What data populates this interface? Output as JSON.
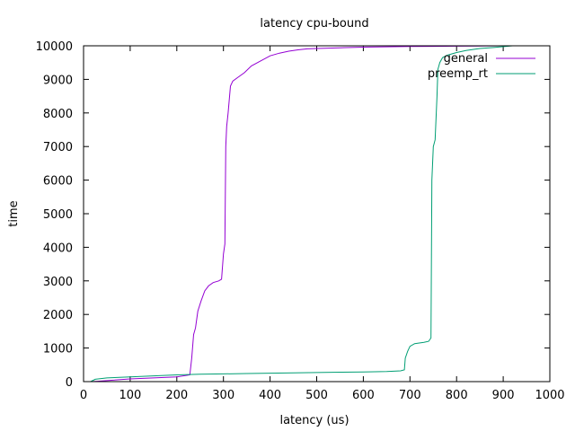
{
  "chart_data": {
    "type": "line",
    "title": "latency cpu-bound",
    "xlabel": "latency (us)",
    "ylabel": "time",
    "xlim": [
      0,
      1000
    ],
    "ylim": [
      0,
      10000
    ],
    "xticks": [
      "0",
      "100",
      "200",
      "300",
      "400",
      "500",
      "600",
      "700",
      "800",
      "900",
      "1000"
    ],
    "yticks": [
      "0",
      "1000",
      "2000",
      "3000",
      "4000",
      "5000",
      "6000",
      "7000",
      "8000",
      "9000",
      "10000"
    ],
    "grid": false,
    "legend_position": "top-right",
    "series": [
      {
        "name": "general",
        "color": "#9400d3",
        "x": [
          15,
          30,
          60,
          100,
          150,
          200,
          228,
          232,
          236,
          240,
          245,
          252,
          260,
          268,
          278,
          290,
          296,
          300,
          303,
          305,
          307,
          310,
          315,
          320,
          330,
          345,
          360,
          380,
          400,
          420,
          440,
          460,
          480,
          500,
          550,
          600,
          650,
          700,
          750,
          800,
          850,
          900
        ],
        "y": [
          0,
          10,
          40,
          80,
          110,
          140,
          200,
          700,
          1400,
          1600,
          2100,
          2400,
          2700,
          2850,
          2950,
          3000,
          3050,
          3800,
          4100,
          7000,
          7600,
          8000,
          8800,
          8950,
          9050,
          9200,
          9400,
          9550,
          9700,
          9780,
          9840,
          9880,
          9910,
          9920,
          9940,
          9960,
          9970,
          9980,
          9985,
          9990,
          9995,
          10000
        ]
      },
      {
        "name": "preemp_rt",
        "color": "#009e73",
        "x": [
          15,
          25,
          50,
          100,
          150,
          200,
          250,
          300,
          350,
          400,
          450,
          500,
          550,
          600,
          650,
          680,
          688,
          690,
          695,
          700,
          710,
          720,
          730,
          740,
          745,
          747,
          750,
          752,
          754,
          758,
          760,
          762,
          764,
          770,
          780,
          800,
          820,
          850,
          880,
          920
        ],
        "y": [
          0,
          70,
          110,
          140,
          170,
          200,
          220,
          230,
          240,
          250,
          260,
          270,
          280,
          290,
          300,
          320,
          350,
          700,
          900,
          1050,
          1130,
          1150,
          1170,
          1200,
          1300,
          6000,
          7000,
          7100,
          7200,
          8500,
          9300,
          9400,
          9500,
          9650,
          9720,
          9800,
          9860,
          9920,
          9950,
          10000
        ]
      }
    ]
  }
}
